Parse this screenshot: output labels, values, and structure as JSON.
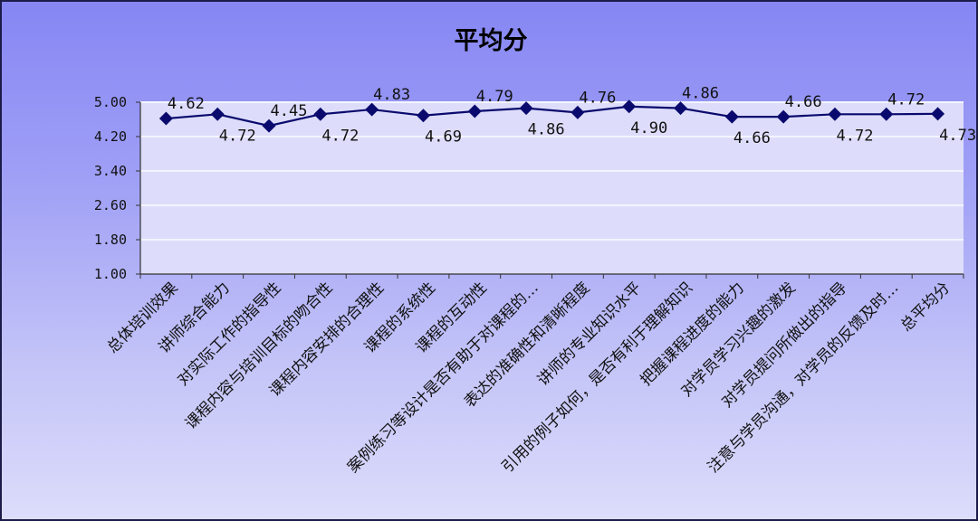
{
  "chart_data": {
    "type": "line",
    "title": "平均分",
    "xlabel": "",
    "ylabel": "",
    "ylim": [
      1.0,
      5.0
    ],
    "yticks": [
      "1.00",
      "1.80",
      "2.60",
      "3.40",
      "4.20",
      "5.00"
    ],
    "grid": true,
    "legend": "none",
    "categories": [
      "总体培训效果",
      "讲师综合能力",
      "对实际工作的指导性",
      "课程内容与培训目标的吻合性",
      "课程内容安排的合理性",
      "课程的系统性",
      "课程的互动性",
      "案例练习等设计是否有助于对课程的…",
      "表达的准确性和清晰程度",
      "讲师的专业知识水平",
      "引用的例子如何，是否有利于理解知识",
      "把握课程进度的能力",
      "对学员学习兴趣的激发",
      "对学员提问所做出的指导",
      "注意与学员沟通，对学员的反馈及时…",
      "总平均分"
    ],
    "series": [
      {
        "values": [
          4.62,
          4.72,
          4.45,
          4.72,
          4.83,
          4.69,
          4.79,
          4.86,
          4.76,
          4.9,
          4.86,
          4.66,
          4.66,
          4.72,
          4.72,
          4.73
        ],
        "labels": [
          "4.62",
          "4.72",
          "4.45",
          "4.72",
          "4.83",
          "4.69",
          "4.79",
          "4.86",
          "4.76",
          "4.90",
          "4.86",
          "4.66",
          "4.66",
          "4.72",
          "4.72",
          "4.73"
        ],
        "color": "#0a0a6e",
        "marker": "diamond"
      }
    ],
    "colors": {
      "gridline": "#f4f4ff",
      "axis": "#333333",
      "plot_background": "#ddddfb"
    }
  }
}
